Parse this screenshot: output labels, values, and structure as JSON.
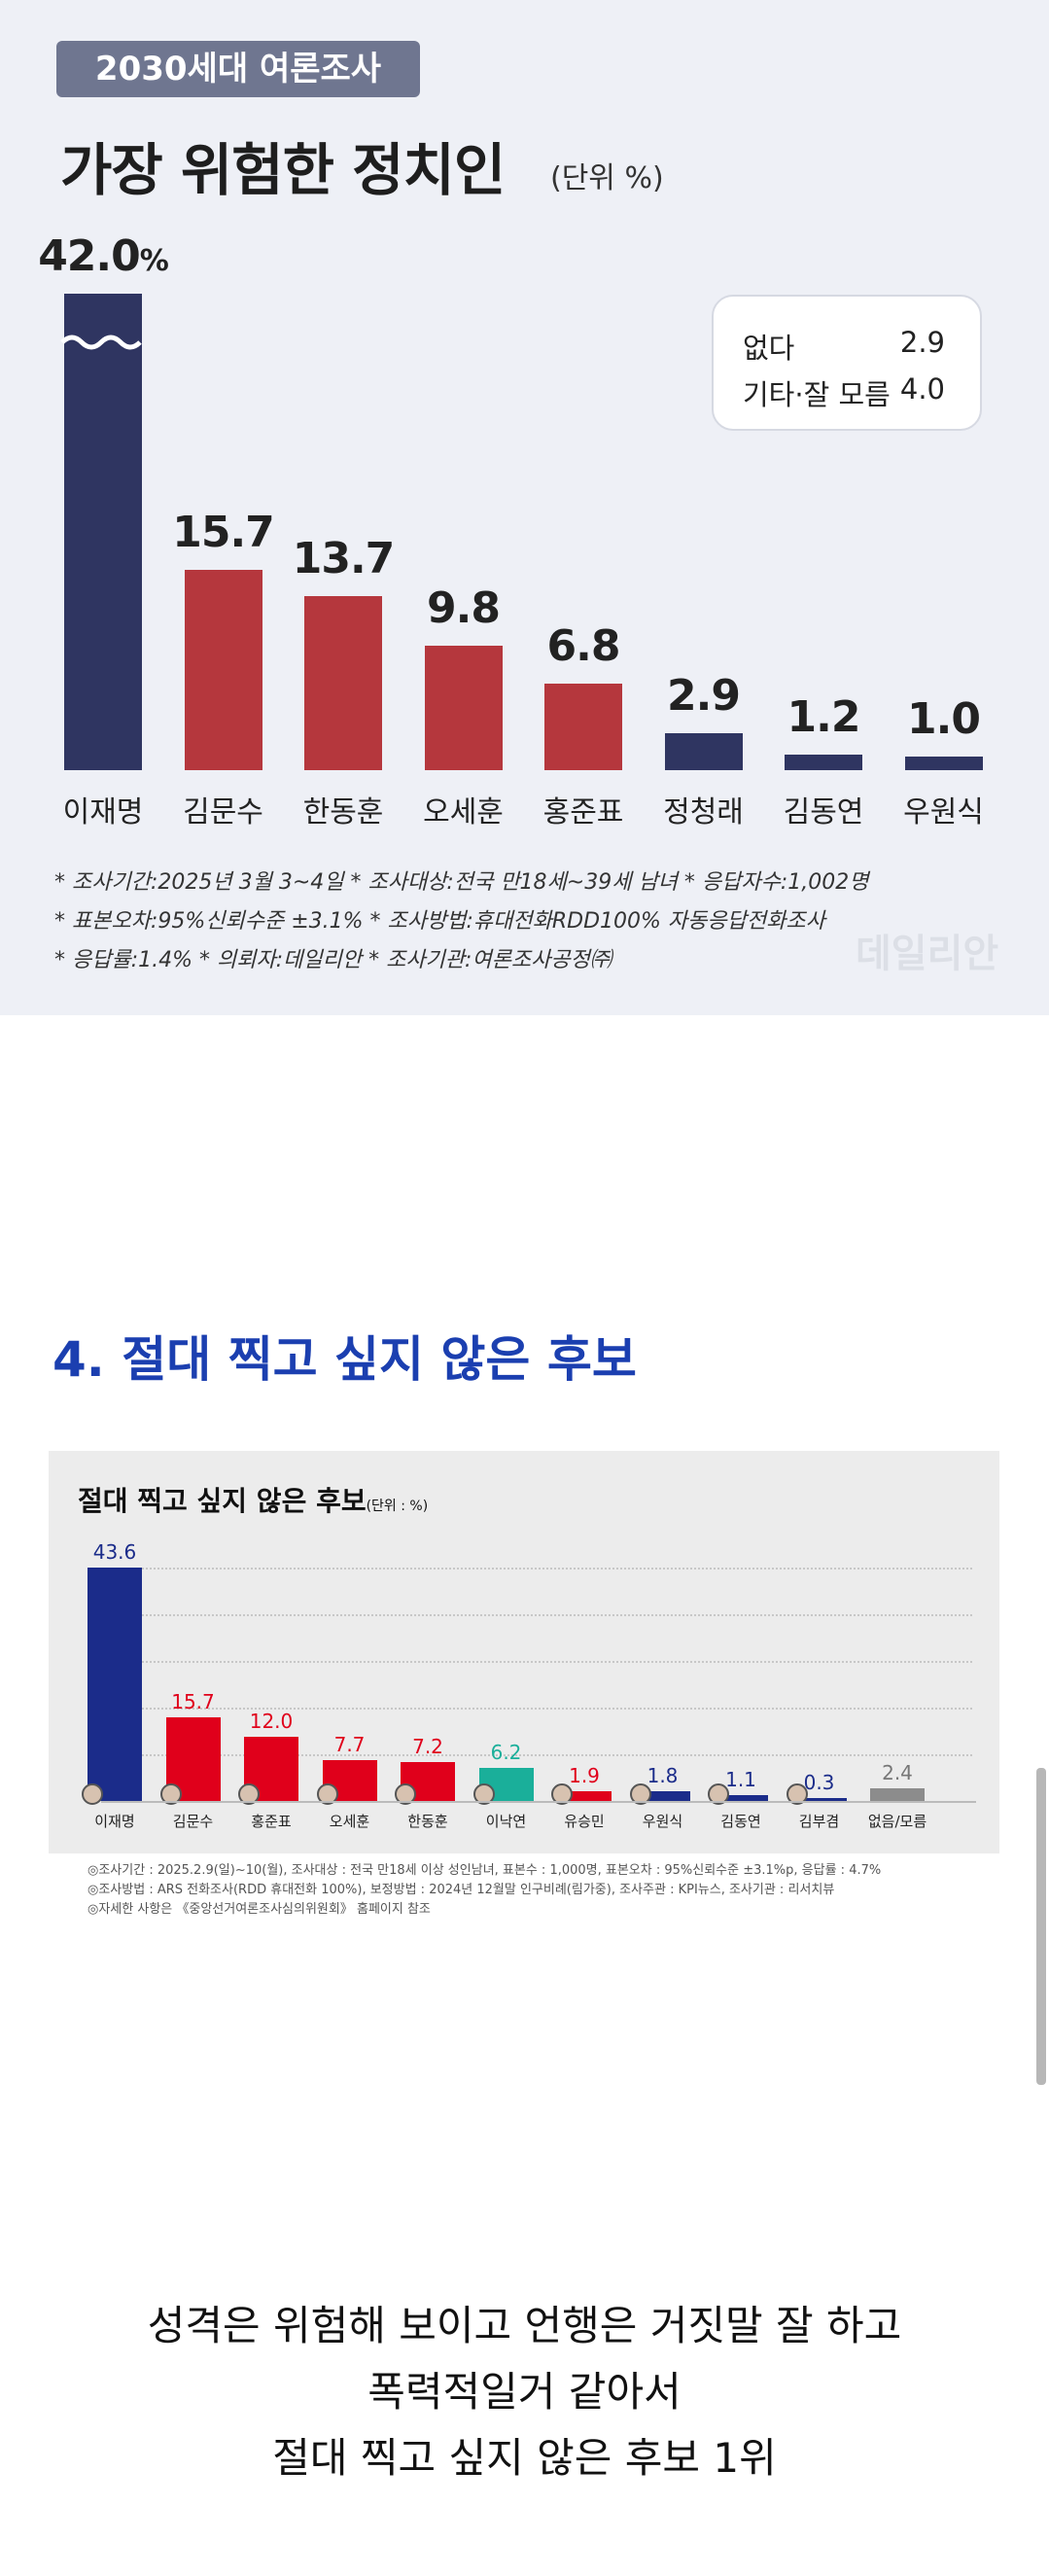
{
  "chart_data": [
    {
      "type": "bar",
      "tag": "2030세대 여론조사",
      "title": "가장 위험한 정치인",
      "unit": "(단위 %)",
      "categories": [
        "이재명",
        "김문수",
        "한동훈",
        "오세훈",
        "홍준표",
        "정청래",
        "김동연",
        "우원식"
      ],
      "values": [
        42.0,
        15.7,
        13.7,
        9.8,
        6.8,
        2.9,
        1.2,
        1.0
      ],
      "value_labels": [
        "42.0",
        "15.7",
        "13.7",
        "9.8",
        "6.8",
        "2.9",
        "1.2",
        "1.0"
      ],
      "first_value_suffix": "%",
      "axis_break_on_first_bar": true,
      "bar_colors": [
        "#2f3561",
        "#b5373d",
        "#b5373d",
        "#b5373d",
        "#b5373d",
        "#2f3561",
        "#2f3561",
        "#2f3561"
      ],
      "legend_box": [
        {
          "label": "없다",
          "value": "2.9"
        },
        {
          "label": "기타·잘 모름",
          "value": "4.0"
        }
      ],
      "footnotes": [
        "* 조사기간:2025년 3월 3~4일  * 조사대상:전국 만18세~39세 남녀  * 응답자수:1,002명",
        "* 표본오차:95%신뢰수준 ±3.1%  * 조사방법:휴대전화RDD100% 자동응답전화조사",
        "* 응답률:1.4%  * 의뢰자:데일리안  * 조사기관:여론조사공정㈜"
      ],
      "watermark": "데일리안",
      "grid": false
    },
    {
      "type": "bar",
      "title": "절대 찍고 싶지 않은 후보",
      "unit": "(단위 : %)",
      "categories": [
        "이재명",
        "김문수",
        "홍준표",
        "오세훈",
        "한동훈",
        "이낙연",
        "유승민",
        "우원식",
        "김동연",
        "김부겸",
        "없음/모름"
      ],
      "values": [
        43.6,
        15.7,
        12.0,
        7.7,
        7.2,
        6.2,
        1.9,
        1.8,
        1.1,
        0.3,
        2.4
      ],
      "value_labels": [
        "43.6",
        "15.7",
        "12.0",
        "7.7",
        "7.2",
        "6.2",
        "1.9",
        "1.8",
        "1.1",
        "0.3",
        "2.4"
      ],
      "bar_colors": [
        "#1b2c8a",
        "#e0001b",
        "#e0001b",
        "#e0001b",
        "#e0001b",
        "#1aaf9a",
        "#e0001b",
        "#1b2c8a",
        "#1b2c8a",
        "#1b2c8a",
        "#8c8c8c"
      ],
      "label_colors": [
        "#1b2c8a",
        "#e0001b",
        "#e0001b",
        "#e0001b",
        "#e0001b",
        "#1aaf9a",
        "#e0001b",
        "#1b2c8a",
        "#1b2c8a",
        "#1b2c8a",
        "#777777"
      ],
      "ylim": [
        0,
        50
      ],
      "grid": true,
      "footnotes": [
        "◎조사기간 : 2025.2.9(일)~10(월), 조사대상 : 전국 만18세 이상 성인남녀, 표본수 : 1,000명, 표본오차 : 95%신뢰수준 ±3.1%p, 응답률 : 4.7%",
        "◎조사방법 : ARS 전화조사(RDD 휴대전화 100%), 보정방법 : 2024년 12월말 인구비례(림가중), 조사주관 : KPI뉴스, 조사기관 : 리서치뷰",
        "◎자세한 사항은 《중앙선거여론조사심의위원회》 홈페이지 참조"
      ]
    }
  ],
  "section_heading": "4. 절대 찍고 싶지 않은 후보",
  "caption": [
    "성격은 위험해 보이고 언행은 거짓말 잘 하고",
    "폭력적일거 같아서",
    "절대 찍고 싶지 않은 후보 1위"
  ]
}
